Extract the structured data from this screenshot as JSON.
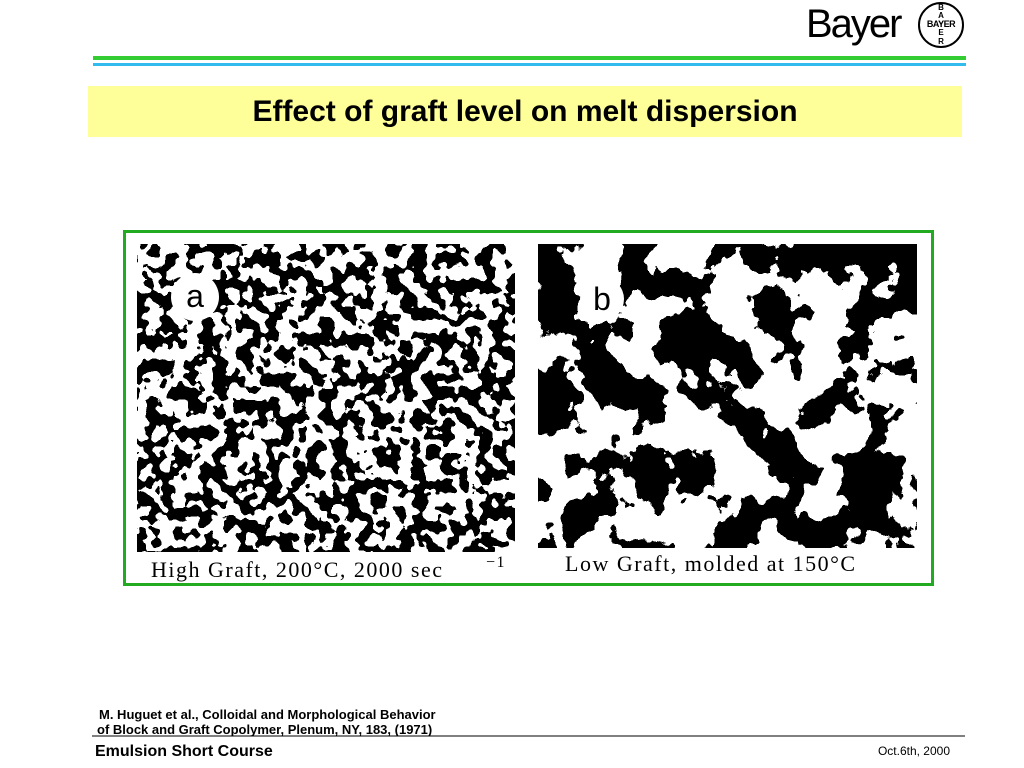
{
  "header": {
    "brand": "Bayer",
    "logo": "BAYER"
  },
  "title": "Effect of graft level on melt dispersion",
  "figure": {
    "panels": [
      {
        "label": "a",
        "caption": "High Graft, 200°C, 2000 sec",
        "caption_sup": "−1"
      },
      {
        "label": "b",
        "caption": "Low Graft, molded at 150°C"
      }
    ]
  },
  "citation": [
    "M. Huguet et al.,  Colloidal and Morphological Behavior",
    "of Block and Graft Copolymer, Plenum, NY, 183, (1971)"
  ],
  "footer": {
    "left": "Emulsion Short Course",
    "right": "Oct.6th, 2000"
  }
}
